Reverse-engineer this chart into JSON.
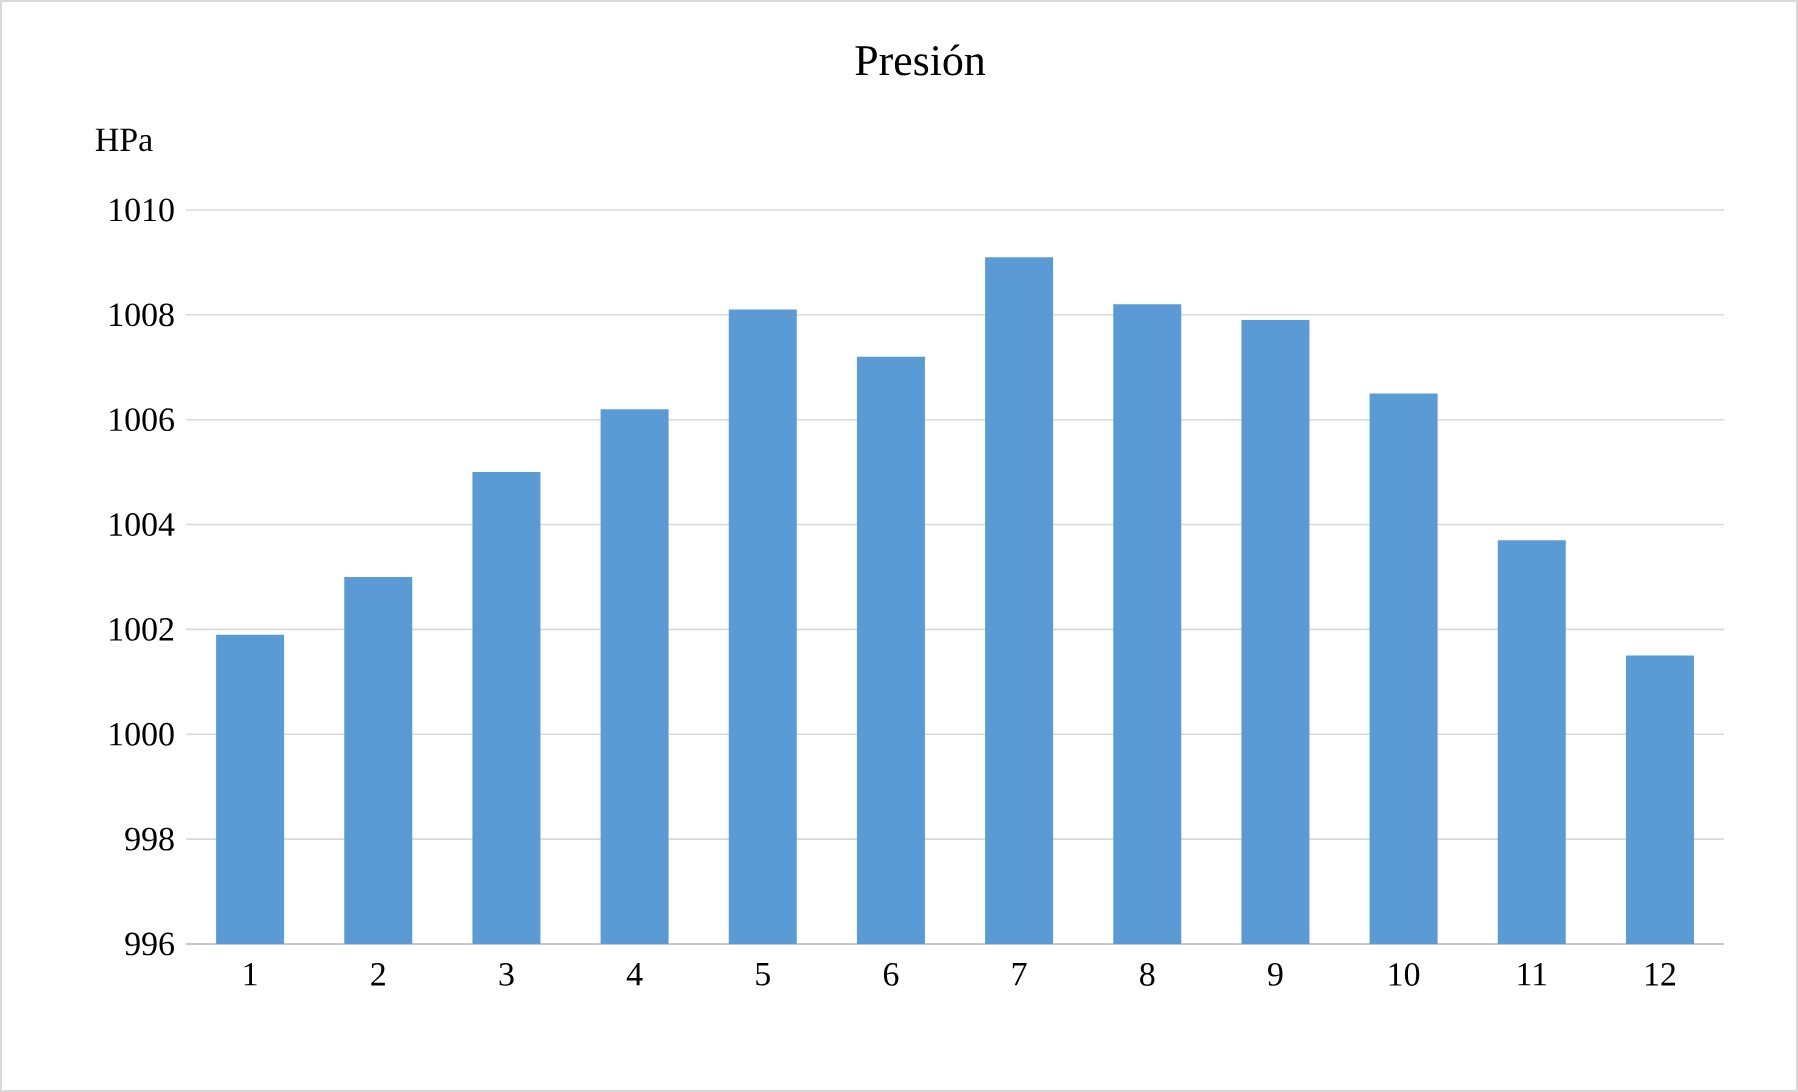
{
  "chart_data": {
    "type": "bar",
    "title": "Presión",
    "ylabel": "HPa",
    "categories": [
      "1",
      "2",
      "3",
      "4",
      "5",
      "6",
      "7",
      "8",
      "9",
      "10",
      "11",
      "12"
    ],
    "values": [
      1001.9,
      1003.0,
      1005.0,
      1006.2,
      1008.1,
      1007.2,
      1009.1,
      1008.2,
      1007.9,
      1006.5,
      1003.7,
      1001.5
    ],
    "color": "#5b9bd5",
    "ylim": [
      996,
      1010
    ],
    "yticks": [
      996,
      998,
      1000,
      1002,
      1004,
      1006,
      1008,
      1010
    ],
    "grid": "y"
  }
}
